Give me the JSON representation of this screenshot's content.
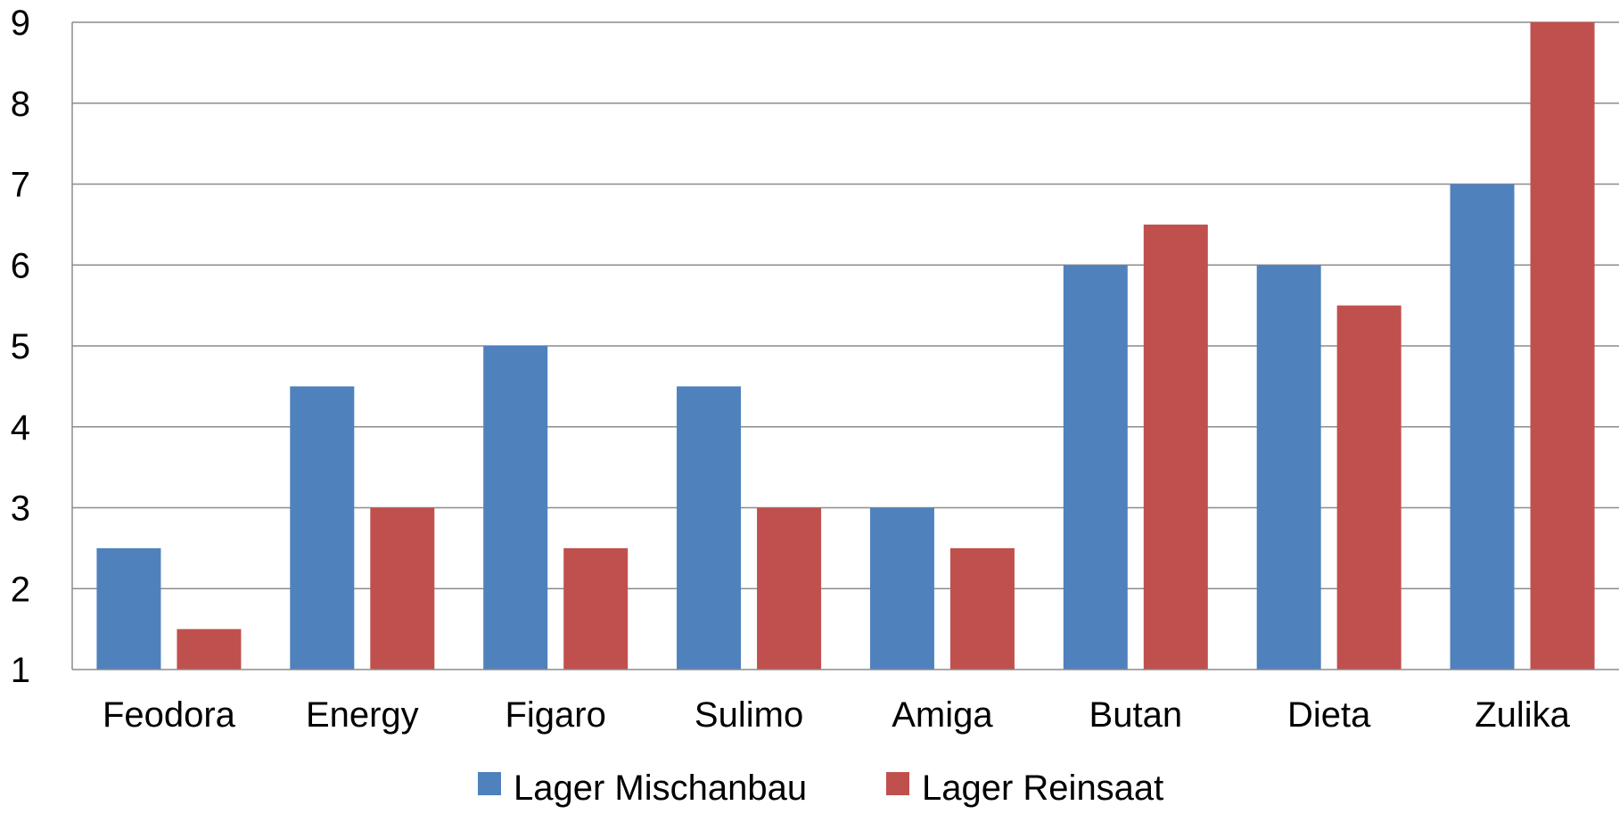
{
  "chart_data": {
    "type": "bar",
    "categories": [
      "Feodora",
      "Energy",
      "Figaro",
      "Sulimo",
      "Amiga",
      "Butan",
      "Dieta",
      "Zulika"
    ],
    "series": [
      {
        "name": "Lager Mischanbau",
        "color": "#4F81BD",
        "values": [
          2.5,
          4.5,
          5,
          4.5,
          3,
          6,
          6,
          7
        ]
      },
      {
        "name": "Lager Reinsaat",
        "color": "#C0504D",
        "values": [
          1.5,
          3,
          2.5,
          3,
          2.5,
          6.5,
          5.5,
          9
        ]
      }
    ],
    "ylim": [
      1,
      9
    ],
    "yticks": [
      "1",
      "2",
      "3",
      "4",
      "5",
      "6",
      "7",
      "8",
      "9"
    ],
    "grid": true,
    "legend_position": "bottom",
    "title": "",
    "xlabel": "",
    "ylabel": ""
  }
}
